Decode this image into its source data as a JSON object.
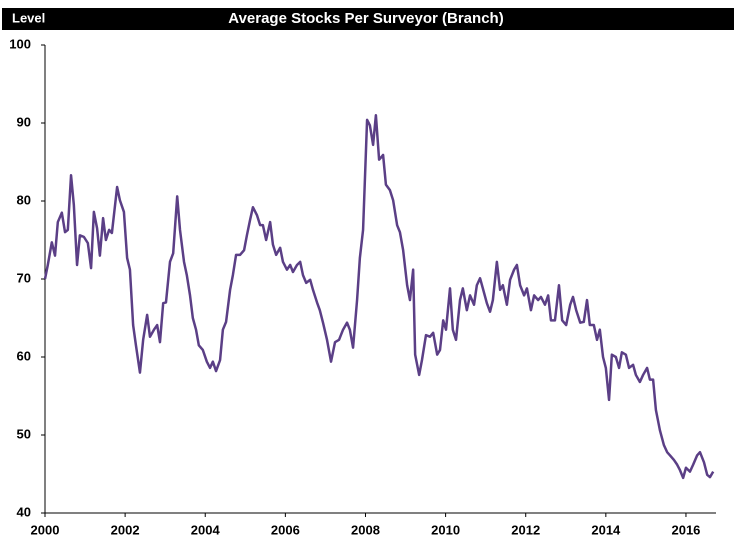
{
  "chart_data": {
    "type": "line",
    "title": "Average Stocks Per Surveyor (Branch)",
    "y_label": "Level",
    "x": [
      2000.0,
      2000.07,
      2000.17,
      2000.25,
      2000.32,
      2000.42,
      2000.5,
      2000.57,
      2000.65,
      2000.72,
      2000.8,
      2000.87,
      2000.97,
      2001.07,
      2001.15,
      2001.22,
      2001.3,
      2001.37,
      2001.45,
      2001.52,
      2001.6,
      2001.67,
      2001.8,
      2001.87,
      2001.97,
      2002.05,
      2002.12,
      2002.2,
      2002.27,
      2002.37,
      2002.45,
      2002.55,
      2002.62,
      2002.72,
      2002.8,
      2002.87,
      2002.95,
      2003.02,
      2003.12,
      2003.2,
      2003.3,
      2003.37,
      2003.47,
      2003.54,
      2003.62,
      2003.69,
      2003.77,
      2003.84,
      2003.94,
      2004.04,
      2004.12,
      2004.19,
      2004.27,
      2004.37,
      2004.44,
      2004.52,
      2004.62,
      2004.69,
      2004.77,
      2004.87,
      2004.97,
      2005.04,
      2005.12,
      2005.19,
      2005.29,
      2005.37,
      2005.44,
      2005.52,
      2005.62,
      2005.69,
      2005.77,
      2005.87,
      2005.94,
      2006.04,
      2006.12,
      2006.19,
      2006.29,
      2006.37,
      2006.44,
      2006.52,
      2006.62,
      2006.69,
      2006.79,
      2006.86,
      2006.94,
      2007.04,
      2007.14,
      2007.24,
      2007.34,
      2007.44,
      2007.54,
      2007.61,
      2007.69,
      2007.79,
      2007.86,
      2007.94,
      2008.04,
      2008.11,
      2008.19,
      2008.26,
      2008.34,
      2008.44,
      2008.51,
      2008.61,
      2008.69,
      2008.79,
      2008.86,
      2008.94,
      2009.04,
      2009.11,
      2009.19,
      2009.24,
      2009.34,
      2009.41,
      2009.51,
      2009.61,
      2009.69,
      2009.79,
      2009.86,
      2009.94,
      2010.01,
      2010.11,
      2010.18,
      2010.26,
      2010.36,
      2010.43,
      2010.53,
      2010.61,
      2010.71,
      2010.78,
      2010.86,
      2010.93,
      2011.03,
      2011.11,
      2011.18,
      2011.28,
      2011.36,
      2011.43,
      2011.53,
      2011.61,
      2011.71,
      2011.78,
      2011.86,
      2011.96,
      2012.03,
      2012.13,
      2012.21,
      2012.31,
      2012.38,
      2012.48,
      2012.56,
      2012.63,
      2012.73,
      2012.83,
      2012.91,
      2013.01,
      2013.11,
      2013.18,
      2013.26,
      2013.36,
      2013.45,
      2013.53,
      2013.6,
      2013.7,
      2013.78,
      2013.85,
      2013.93,
      2014.0,
      2014.08,
      2014.15,
      2014.25,
      2014.33,
      2014.4,
      2014.5,
      2014.58,
      2014.68,
      2014.75,
      2014.85,
      2014.93,
      2015.03,
      2015.1,
      2015.18,
      2015.25,
      2015.35,
      2015.45,
      2015.53,
      2015.6,
      2015.7,
      2015.78,
      2015.85,
      2015.93,
      2016.0,
      2016.1,
      2016.18,
      2016.28,
      2016.35,
      2016.45,
      2016.53,
      2016.6,
      2016.68
    ],
    "series": [
      {
        "name": "Average Stocks Per Surveyor",
        "color": "#5b3f86",
        "values": [
          70,
          71.8,
          74.7,
          73,
          77.3,
          78.5,
          76,
          76.3,
          83.3,
          79.5,
          71.8,
          75.6,
          75.4,
          74.6,
          71.4,
          78.6,
          76.5,
          73,
          77.8,
          75,
          76.3,
          75.9,
          81.8,
          80.1,
          78.6,
          72.7,
          71.2,
          64.1,
          61.5,
          58,
          62.2,
          65.4,
          62.6,
          63.5,
          64.1,
          61.9,
          66.9,
          67,
          72.2,
          73.3,
          80.6,
          76.3,
          72.2,
          70.5,
          67.9,
          65,
          63.5,
          61.5,
          60.9,
          59.4,
          58.6,
          59.4,
          58.2,
          59.6,
          63.5,
          64.5,
          68.6,
          70.5,
          73.1,
          73.1,
          73.7,
          75.6,
          77.6,
          79.2,
          78.2,
          76.9,
          76.9,
          75,
          77.3,
          74.4,
          73.1,
          74,
          72.2,
          71.2,
          71.8,
          70.9,
          71.8,
          72.2,
          70.5,
          69.5,
          69.9,
          68.6,
          67,
          66,
          64.4,
          62.2,
          59.4,
          61.9,
          62.2,
          63.5,
          64.4,
          63.5,
          61.2,
          67.3,
          72.7,
          76.3,
          90.4,
          89.7,
          87.2,
          91,
          85.3,
          85.9,
          82.1,
          81.4,
          80.1,
          76.9,
          76,
          73.7,
          69.2,
          67.3,
          71.2,
          60.3,
          57.7,
          59.6,
          62.8,
          62.6,
          63.1,
          60.3,
          60.9,
          64.7,
          63.5,
          68.8,
          63.5,
          62.2,
          67.3,
          68.8,
          66,
          67.9,
          66.7,
          69.2,
          70.1,
          68.8,
          66.9,
          65.8,
          67.3,
          72.2,
          68.6,
          69.2,
          66.7,
          69.9,
          71.2,
          71.8,
          69.2,
          67.9,
          68.8,
          66,
          67.9,
          67.3,
          67.7,
          66.7,
          67.9,
          64.7,
          64.7,
          69.2,
          64.7,
          64.1,
          66.7,
          67.7,
          66,
          64.4,
          64.5,
          67.3,
          64.1,
          64.1,
          62.2,
          63.5,
          60,
          58.6,
          54.5,
          60.3,
          60,
          58.6,
          60.6,
          60.3,
          58.6,
          59,
          57.7,
          56.8,
          57.7,
          58.6,
          57.1,
          57.1,
          53.2,
          50.6,
          48.7,
          47.8,
          47.4,
          46.8,
          46.2,
          45.5,
          44.5,
          45.8,
          45.3,
          46.2,
          47.4,
          47.8,
          46.5,
          44.9,
          44.6,
          45.3
        ]
      }
    ],
    "xlim": [
      2000,
      2016.75
    ],
    "xticks": [
      2000,
      2002,
      2004,
      2006,
      2008,
      2010,
      2012,
      2014,
      2016
    ],
    "ylim": [
      40,
      100
    ],
    "yticks": [
      40,
      50,
      60,
      70,
      80,
      90,
      100
    ],
    "grid": false
  }
}
